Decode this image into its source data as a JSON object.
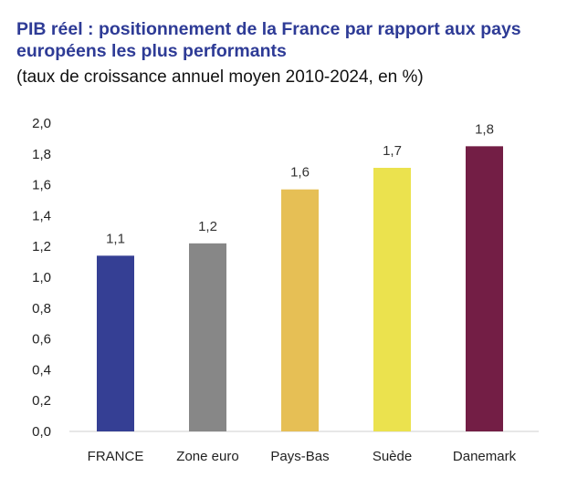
{
  "chart_data": {
    "type": "bar",
    "title": "PIB réel : positionnement de la France par rapport aux pays européens les plus performants",
    "subtitle": "(taux de croissance annuel moyen 2010-2024, en %)",
    "categories": [
      "FRANCE",
      "Zone euro",
      "Pays-Bas",
      "Suède",
      "Danemark"
    ],
    "values": [
      1.14,
      1.22,
      1.57,
      1.71,
      1.85
    ],
    "data_labels": [
      "1,1",
      "1,2",
      "1,6",
      "1,7",
      "1,8"
    ],
    "colors": [
      "#353f94",
      "#878787",
      "#e6bf55",
      "#ebe24e",
      "#731e45"
    ],
    "ylim": [
      0,
      2.0
    ],
    "yticks": [
      "0,0",
      "0,2",
      "0,4",
      "0,6",
      "0,8",
      "1,0",
      "1,2",
      "1,4",
      "1,6",
      "1,8",
      "2,0"
    ],
    "xlabel": "",
    "ylabel": "",
    "grid": false,
    "legend": "none"
  }
}
